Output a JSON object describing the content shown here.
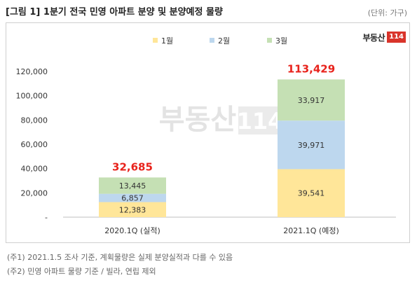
{
  "title": "[그림 1] 1분기 전국 민영 아파트 분양 및 분양예정 물량",
  "unit": "(단위: 가구)",
  "logo": {
    "text": "부동산",
    "number": "114"
  },
  "watermark": {
    "text": "부동산",
    "number": "114"
  },
  "notes": [
    "(주1) 2021.1.5 조사 기준, 계획물량은 실제 분양실적과 다를 수 있음",
    "(주2) 민영 아파트 물량 기준 / 빌라, 연립 제외"
  ],
  "chart_data": {
    "type": "bar",
    "stacked": true,
    "categories": [
      "2020.1Q (실적)",
      "2021.1Q (예정)"
    ],
    "series": [
      {
        "name": "1월",
        "color": "#ffe699",
        "values": [
          12383,
          39541
        ],
        "labels": [
          "12,383",
          "39,541"
        ]
      },
      {
        "name": "2월",
        "color": "#bdd7ee",
        "values": [
          6857,
          39971
        ],
        "labels": [
          "6,857",
          "39,971"
        ]
      },
      {
        "name": "3월",
        "color": "#c5e0b4",
        "values": [
          13445,
          33917
        ],
        "labels": [
          "13,445",
          "33,917"
        ]
      }
    ],
    "totals": [
      32685,
      113429
    ],
    "total_labels": [
      "32,685",
      "113,429"
    ],
    "total_color": "#e8231c",
    "ylim": [
      0,
      120000
    ],
    "yticks": [
      0,
      20000,
      40000,
      60000,
      80000,
      100000,
      120000
    ],
    "ytick_labels": [
      "-",
      "20,000",
      "40,000",
      "60,000",
      "80,000",
      "100,000",
      "120,000"
    ],
    "legend_position": "top",
    "grid": false
  }
}
